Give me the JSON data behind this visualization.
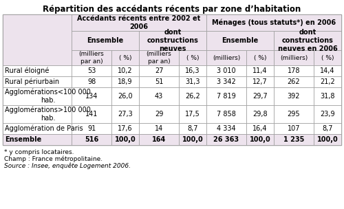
{
  "title": "Répartition des accédants récents par zone d’habitation",
  "header_bg": "#ede3ed",
  "ensemble_bg": "#ede3ed",
  "white_bg": "#ffffff",
  "border_color": "#999999",
  "title_fontsize": 8.5,
  "header_fontsize": 7.0,
  "body_fontsize": 7.0,
  "footnote_fontsize": 6.5,
  "col_group_labels": [
    "Accédants récents entre 2002 et\n2006",
    "Ménages (tous statuts*) en 2006"
  ],
  "col_sub_labels": [
    "Ensemble",
    "dont\nconstructions\nneuves",
    "Ensemble",
    "dont\nconstructions\nneuves en 2006"
  ],
  "col_unit_labels": [
    "(milliers\npar an)",
    "( %)",
    "(milliers\npar an)",
    "( %)",
    "(milliers)",
    "( %)",
    "(milliers)",
    "( %)"
  ],
  "rows": [
    {
      "label": "Rural éloigné",
      "values": [
        "53",
        "10,2",
        "27",
        "16,3",
        "3 010",
        "11,4",
        "178",
        "14,4"
      ],
      "bold": false
    },
    {
      "label": "Rural périurbain",
      "values": [
        "98",
        "18,9",
        "51",
        "31,3",
        "3 342",
        "12,7",
        "262",
        "21,2"
      ],
      "bold": false
    },
    {
      "label": "Agglomérations<100 000\nhab.",
      "values": [
        "134",
        "26,0",
        "43",
        "26,2",
        "7 819",
        "29,7",
        "392",
        "31,8"
      ],
      "bold": false
    },
    {
      "label": "Agglomérations>100 000\nhab.",
      "values": [
        "141",
        "27,3",
        "29",
        "17,5",
        "7 858",
        "29,8",
        "295",
        "23,9"
      ],
      "bold": false
    },
    {
      "label": "Agglomération de Paris",
      "values": [
        "91",
        "17,6",
        "14",
        "8,7",
        "4 334",
        "16,4",
        "107",
        "8,7"
      ],
      "bold": false
    },
    {
      "label": "Ensemble",
      "values": [
        "516",
        "100,0",
        "164",
        "100,0",
        "26 363",
        "100,0",
        "1 235",
        "100,0"
      ],
      "bold": true
    }
  ],
  "footnotes": [
    {
      "text": "* y compris locataires.",
      "italic": false
    },
    {
      "text": "Champ : France métropolitaine.",
      "italic": false
    },
    {
      "text": "Source : Insee, enquête Logement 2006.",
      "italic": true
    }
  ]
}
